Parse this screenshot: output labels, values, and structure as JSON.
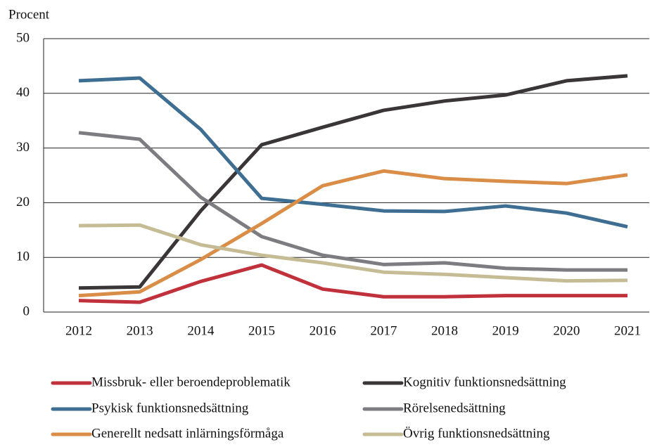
{
  "chart_data": {
    "type": "line",
    "y_label": "Procent",
    "categories": [
      "2012",
      "2013",
      "2014",
      "2015",
      "2016",
      "2017",
      "2018",
      "2019",
      "2020",
      "2021"
    ],
    "series": [
      {
        "name": "Missbruk- eller beroendeproblematik",
        "color": "#c0313b",
        "values": [
          2.1,
          1.8,
          5.6,
          8.6,
          4.2,
          2.8,
          2.8,
          3.0,
          3.0,
          3.0
        ]
      },
      {
        "name": "Kognitiv funktionsnedsättning",
        "color": "#3a3536",
        "values": [
          4.4,
          4.6,
          18.5,
          30.6,
          33.8,
          36.9,
          38.6,
          39.7,
          42.3,
          43.2
        ]
      },
      {
        "name": "Psykisk funktionsnedsättning",
        "color": "#3e6e91",
        "values": [
          42.3,
          42.8,
          33.4,
          20.8,
          19.7,
          18.5,
          18.4,
          19.4,
          18.1,
          15.6
        ]
      },
      {
        "name": "Rörelsenedsättning",
        "color": "#7d7c80",
        "values": [
          32.8,
          31.6,
          21.0,
          13.8,
          10.4,
          8.7,
          9.0,
          8.0,
          7.7,
          7.7
        ]
      },
      {
        "name": "Generellt nedsatt inlärningsförmåga",
        "color": "#d98d46",
        "values": [
          3.0,
          3.7,
          9.6,
          16.2,
          23.1,
          25.8,
          24.4,
          23.9,
          23.5,
          25.1
        ]
      },
      {
        "name": "Övrig funktionsnedsättning",
        "color": "#c5bc96",
        "values": [
          15.8,
          15.9,
          12.3,
          10.4,
          9.0,
          7.3,
          6.9,
          6.3,
          5.7,
          5.8
        ]
      }
    ],
    "ylim": [
      0,
      50
    ],
    "yticks": [
      0,
      10,
      20,
      30,
      40,
      50
    ],
    "grid": true
  }
}
